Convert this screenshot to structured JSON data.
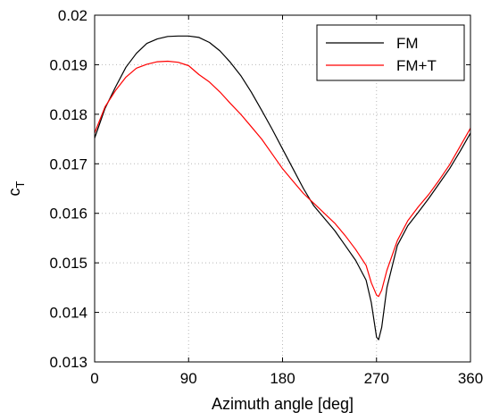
{
  "chart_data": {
    "type": "line",
    "title": "",
    "xlabel": "Azimuth angle [deg]",
    "ylabel": "c",
    "ylabel_subscript": "T",
    "xlim": [
      0,
      360
    ],
    "ylim": [
      0.013,
      0.02
    ],
    "xticks": [
      0,
      90,
      180,
      270,
      360
    ],
    "yticks": [
      0.013,
      0.014,
      0.015,
      0.016,
      0.017,
      0.018,
      0.019,
      0.02
    ],
    "xtick_labels": [
      "0",
      "90",
      "180",
      "270",
      "360"
    ],
    "ytick_labels": [
      "0.013",
      "0.014",
      "0.015",
      "0.016",
      "0.017",
      "0.018",
      "0.019",
      "0.02"
    ],
    "grid": true,
    "legend_position": "top-right",
    "series": [
      {
        "name": "FM",
        "color": "#000000",
        "x": [
          0,
          10,
          20,
          30,
          40,
          50,
          60,
          70,
          80,
          90,
          100,
          110,
          120,
          130,
          140,
          150,
          160,
          170,
          180,
          190,
          200,
          210,
          220,
          230,
          240,
          250,
          260,
          265,
          270,
          272,
          275,
          280,
          290,
          300,
          310,
          320,
          330,
          340,
          350,
          360
        ],
        "y": [
          0.01752,
          0.01812,
          0.01855,
          0.01895,
          0.01923,
          0.01943,
          0.01952,
          0.01957,
          0.01958,
          0.01958,
          0.01955,
          0.01945,
          0.01928,
          0.01905,
          0.01878,
          0.01845,
          0.01808,
          0.0177,
          0.0173,
          0.0169,
          0.0165,
          0.01615,
          0.0159,
          0.01565,
          0.01535,
          0.01505,
          0.01465,
          0.0142,
          0.0135,
          0.01345,
          0.0137,
          0.0145,
          0.01535,
          0.01575,
          0.01602,
          0.0163,
          0.0166,
          0.0169,
          0.01725,
          0.01762
        ]
      },
      {
        "name": "FM+T",
        "color": "#ff0000",
        "x": [
          0,
          10,
          20,
          30,
          40,
          50,
          60,
          70,
          80,
          90,
          100,
          110,
          120,
          130,
          140,
          150,
          160,
          170,
          180,
          190,
          200,
          210,
          220,
          230,
          240,
          250,
          260,
          265,
          270,
          272,
          275,
          280,
          290,
          300,
          310,
          320,
          330,
          340,
          350,
          360
        ],
        "y": [
          0.01762,
          0.01815,
          0.01848,
          0.01875,
          0.01893,
          0.01901,
          0.01906,
          0.01907,
          0.01905,
          0.01898,
          0.0188,
          0.01865,
          0.01845,
          0.01822,
          0.018,
          0.01775,
          0.0175,
          0.0172,
          0.0169,
          0.01665,
          0.0164,
          0.0162,
          0.016,
          0.0158,
          0.01555,
          0.01527,
          0.01495,
          0.0146,
          0.01435,
          0.01432,
          0.01445,
          0.01485,
          0.01545,
          0.01585,
          0.01613,
          0.01638,
          0.01667,
          0.01698,
          0.01735,
          0.01772
        ]
      }
    ]
  }
}
